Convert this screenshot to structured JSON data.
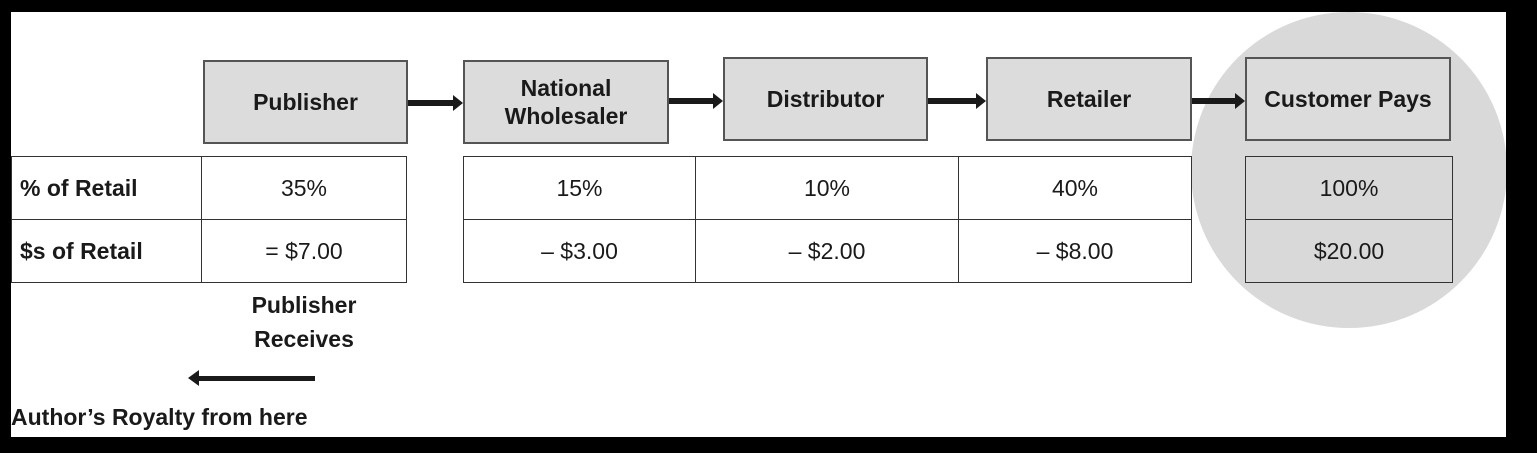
{
  "stages": [
    {
      "name": "Publisher"
    },
    {
      "name": "National Wholesaler"
    },
    {
      "name": "Distributor"
    },
    {
      "name": "Retailer"
    },
    {
      "name": "Customer Pays"
    }
  ],
  "rows": {
    "percent_label": "% of Retail",
    "dollars_label": "$s of Retail"
  },
  "publisher": {
    "percent": "35%",
    "dollars": "= $7.00"
  },
  "chain": [
    {
      "percent": "15%",
      "dollars": "– $3.00"
    },
    {
      "percent": "10%",
      "dollars": "– $2.00"
    },
    {
      "percent": "40%",
      "dollars": "– $8.00"
    }
  ],
  "customer": {
    "percent": "100%",
    "dollars": "$20.00"
  },
  "receives_label": [
    "Publisher",
    "Receives"
  ],
  "royalty_label": "Author’s Royalty from here",
  "colors": {
    "box_fill": "#dcdcdc",
    "highlight": "#d9d9d9",
    "ink": "#1a1a1a"
  }
}
